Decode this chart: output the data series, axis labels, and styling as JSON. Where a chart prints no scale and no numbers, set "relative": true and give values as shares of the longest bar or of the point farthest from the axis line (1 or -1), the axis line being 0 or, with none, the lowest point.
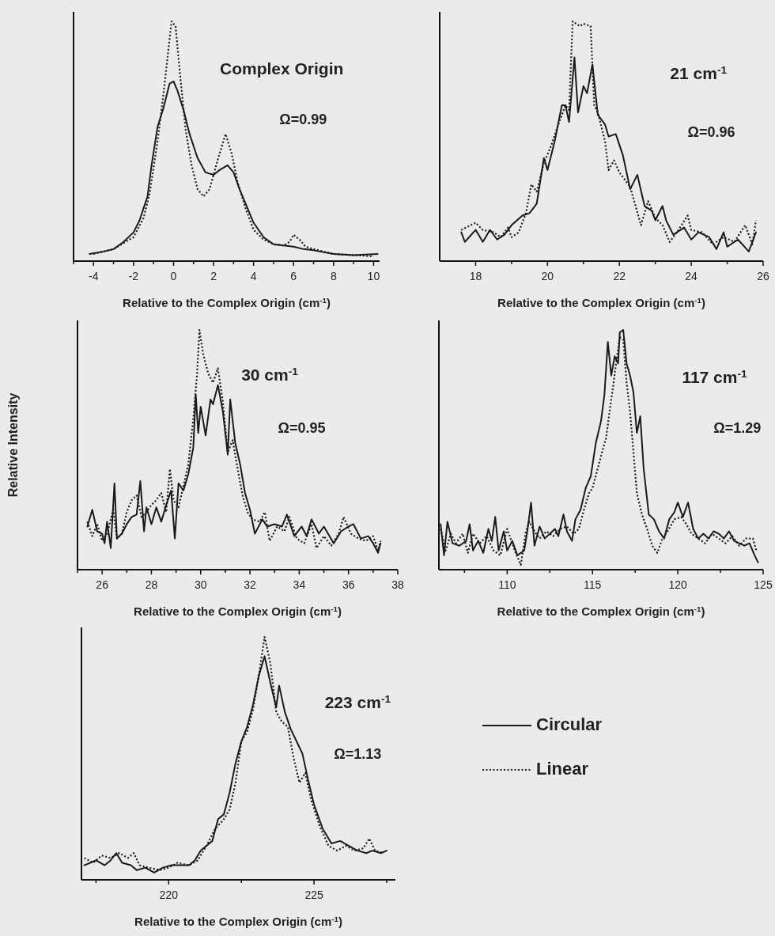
{
  "chart_data": [
    {
      "type": "line",
      "title": "Complex Origin",
      "annotations": [
        "Ω=0.99"
      ],
      "xlabel": "Relative to the Complex Origin (cm$^{-1}$)",
      "relative": true,
      "xlim": [
        -5,
        10.3
      ],
      "xticks": [
        {
          "value": -5,
          "label": null
        },
        -4,
        {
          "value": -3,
          "label": null
        },
        -2,
        {
          "value": -1,
          "label": null
        },
        0,
        {
          "value": 1,
          "label": null
        },
        2,
        {
          "value": 3,
          "label": null
        },
        4,
        {
          "value": 5,
          "label": null
        },
        6,
        {
          "value": 7,
          "label": null
        },
        8,
        {
          "value": 9,
          "label": null
        },
        10
      ],
      "series": [
        {
          "color": "#1a1a1a",
          "line_style": "solid",
          "x": [
            -4.2,
            -3.5,
            -3,
            -2.5,
            -2,
            -1.7,
            -1.5,
            -1.3,
            -1.1,
            -0.8,
            -0.5,
            -0.2,
            0,
            0.2,
            0.5,
            0.8,
            1.2,
            1.6,
            2,
            2.3,
            2.7,
            3,
            3.3,
            3.7,
            4,
            4.5,
            5,
            5.5,
            6,
            6.5,
            7,
            8,
            9,
            10.2
          ],
          "values": [
            0.03,
            0.04,
            0.05,
            0.08,
            0.12,
            0.17,
            0.22,
            0.27,
            0.4,
            0.56,
            0.64,
            0.74,
            0.75,
            0.71,
            0.63,
            0.53,
            0.43,
            0.37,
            0.36,
            0.38,
            0.4,
            0.37,
            0.3,
            0.22,
            0.16,
            0.1,
            0.07,
            0.065,
            0.06,
            0.05,
            0.045,
            0.03,
            0.025,
            0.03
          ]
        },
        {
          "color": "#1a1a1a",
          "line_style": "dotted",
          "x": [
            -4,
            -3,
            -2,
            -1.5,
            -1.2,
            -0.8,
            -0.5,
            -0.3,
            -0.1,
            0.1,
            0.3,
            0.6,
            0.9,
            1.2,
            1.5,
            1.8,
            2.2,
            2.6,
            2.9,
            3.2,
            3.6,
            4,
            4.5,
            5,
            5.5,
            5.8,
            6,
            6.3,
            6.6,
            7,
            8,
            9,
            10
          ],
          "values": [
            0.03,
            0.05,
            0.1,
            0.18,
            0.28,
            0.5,
            0.7,
            0.85,
            1,
            0.98,
            0.8,
            0.55,
            0.4,
            0.3,
            0.27,
            0.3,
            0.42,
            0.53,
            0.45,
            0.33,
            0.22,
            0.13,
            0.09,
            0.07,
            0.065,
            0.08,
            0.11,
            0.09,
            0.06,
            0.05,
            0.03,
            0.025,
            0.02
          ]
        }
      ]
    },
    {
      "type": "line",
      "title": "21 cm$^{-1}$",
      "annotations": [
        "Ω=0.96"
      ],
      "xlabel": "Relative to the Complex Origin (cm$^{-1}$)",
      "relative": true,
      "xlim": [
        17,
        26
      ],
      "xticks": [
        18,
        {
          "value": 19,
          "label": null
        },
        20,
        {
          "value": 21,
          "label": null
        },
        22,
        {
          "value": 23,
          "label": null
        },
        24,
        {
          "value": 25,
          "label": null
        },
        26
      ],
      "series": [
        {
          "color": "#1a1a1a",
          "line_style": "solid",
          "x": [
            17.6,
            17.7,
            18,
            18.2,
            18.4,
            18.6,
            18.8,
            19,
            19.3,
            19.5,
            19.7,
            19.9,
            20,
            20.2,
            20.4,
            20.5,
            20.6,
            20.75,
            20.85,
            21,
            21.1,
            21.25,
            21.4,
            21.6,
            21.7,
            21.9,
            22.1,
            22.3,
            22.5,
            22.7,
            22.9,
            23,
            23.2,
            23.3,
            23.5,
            23.8,
            24,
            24.2,
            24.5,
            24.7,
            24.9,
            25,
            25.3,
            25.6,
            25.8
          ],
          "values": [
            0.12,
            0.08,
            0.13,
            0.08,
            0.13,
            0.09,
            0.11,
            0.15,
            0.19,
            0.2,
            0.24,
            0.43,
            0.38,
            0.5,
            0.65,
            0.65,
            0.58,
            0.85,
            0.62,
            0.73,
            0.7,
            0.82,
            0.61,
            0.57,
            0.52,
            0.53,
            0.44,
            0.3,
            0.36,
            0.23,
            0.21,
            0.17,
            0.23,
            0.17,
            0.11,
            0.14,
            0.09,
            0.12,
            0.1,
            0.05,
            0.12,
            0.06,
            0.09,
            0.04,
            0.12
          ]
        },
        {
          "color": "#1a1a1a",
          "line_style": "dotted",
          "x": [
            17.6,
            18,
            18.2,
            18.5,
            18.7,
            18.9,
            19,
            19.2,
            19.4,
            19.55,
            19.7,
            19.9,
            20.1,
            20.3,
            20.5,
            20.6,
            20.7,
            20.9,
            21,
            21.2,
            21.3,
            21.4,
            21.6,
            21.7,
            21.85,
            22,
            22.3,
            22.6,
            22.8,
            23,
            23.2,
            23.4,
            23.6,
            23.9,
            24,
            24.3,
            24.6,
            24.9,
            25.2,
            25.5,
            25.7,
            25.8
          ],
          "values": [
            0.13,
            0.16,
            0.13,
            0.12,
            0.1,
            0.14,
            0.1,
            0.12,
            0.2,
            0.32,
            0.29,
            0.41,
            0.48,
            0.57,
            0.65,
            0.63,
            1,
            0.98,
            0.99,
            0.98,
            0.65,
            0.62,
            0.5,
            0.38,
            0.42,
            0.37,
            0.31,
            0.15,
            0.25,
            0.18,
            0.15,
            0.08,
            0.12,
            0.19,
            0.13,
            0.12,
            0.07,
            0.1,
            0.08,
            0.15,
            0.07,
            0.17
          ]
        }
      ]
    },
    {
      "type": "line",
      "title": "30 cm$^{-1}$",
      "annotations": [
        "Ω=0.95"
      ],
      "xlabel": "Relative to the Complex Origin (cm$^{-1}$)",
      "ylabel": "Relative Intensity",
      "relative": true,
      "xlim": [
        25,
        38
      ],
      "xticks": [
        {
          "value": 25,
          "label": null
        },
        26,
        {
          "value": 27,
          "label": null
        },
        28,
        {
          "value": 29,
          "label": null
        },
        30,
        {
          "value": 31,
          "label": null
        },
        32,
        {
          "value": 33,
          "label": null
        },
        34,
        {
          "value": 35,
          "label": null
        },
        36,
        {
          "value": 37,
          "label": null
        },
        38
      ],
      "series": [
        {
          "color": "#1a1a1a",
          "line_style": "solid",
          "x": [
            25.4,
            25.6,
            25.8,
            26,
            26.1,
            26.2,
            26.35,
            26.5,
            26.6,
            26.8,
            27,
            27.2,
            27.4,
            27.55,
            27.7,
            27.8,
            28,
            28.2,
            28.4,
            28.6,
            28.8,
            28.95,
            29.1,
            29.3,
            29.5,
            29.7,
            29.8,
            29.9,
            30,
            30.2,
            30.4,
            30.5,
            30.7,
            30.9,
            31.1,
            31.2,
            31.4,
            31.6,
            31.8,
            32,
            32.2,
            32.5,
            32.7,
            33,
            33.3,
            33.5,
            33.8,
            34.1,
            34.3,
            34.5,
            34.8,
            35,
            35.4,
            35.7,
            36,
            36.2,
            36.5,
            36.8,
            37,
            37.2,
            37.3
          ],
          "values": [
            0.18,
            0.25,
            0.16,
            0.15,
            0.11,
            0.2,
            0.09,
            0.36,
            0.13,
            0.15,
            0.19,
            0.22,
            0.23,
            0.37,
            0.16,
            0.26,
            0.19,
            0.26,
            0.2,
            0.27,
            0.33,
            0.13,
            0.36,
            0.33,
            0.4,
            0.51,
            0.73,
            0.57,
            0.68,
            0.56,
            0.71,
            0.69,
            0.77,
            0.66,
            0.48,
            0.71,
            0.53,
            0.44,
            0.32,
            0.25,
            0.15,
            0.21,
            0.18,
            0.19,
            0.18,
            0.23,
            0.14,
            0.18,
            0.14,
            0.21,
            0.15,
            0.18,
            0.11,
            0.16,
            0.18,
            0.19,
            0.13,
            0.14,
            0.11,
            0.07,
            0.11
          ]
        },
        {
          "color": "#1a1a1a",
          "line_style": "dotted",
          "x": [
            25.4,
            25.6,
            25.8,
            26,
            26.2,
            26.45,
            26.6,
            26.8,
            27,
            27.2,
            27.4,
            27.6,
            27.8,
            28,
            28.2,
            28.4,
            28.6,
            28.75,
            28.9,
            29.1,
            29.3,
            29.5,
            29.7,
            29.85,
            29.95,
            30.1,
            30.3,
            30.5,
            30.7,
            30.9,
            31.1,
            31.3,
            31.5,
            31.7,
            31.9,
            32.1,
            32.4,
            32.6,
            32.8,
            33.1,
            33.4,
            33.6,
            33.9,
            34.2,
            34.5,
            34.7,
            35,
            35.3,
            35.6,
            35.8,
            36.1,
            36.4,
            36.7,
            37,
            37.2,
            37.3
          ],
          "values": [
            0.2,
            0.14,
            0.19,
            0.12,
            0.15,
            0.25,
            0.13,
            0.15,
            0.24,
            0.29,
            0.31,
            0.22,
            0.24,
            0.27,
            0.29,
            0.32,
            0.24,
            0.42,
            0.29,
            0.26,
            0.35,
            0.44,
            0.63,
            0.81,
            1,
            0.9,
            0.82,
            0.78,
            0.84,
            0.7,
            0.49,
            0.54,
            0.42,
            0.31,
            0.24,
            0.21,
            0.2,
            0.24,
            0.12,
            0.18,
            0.16,
            0.22,
            0.13,
            0.11,
            0.19,
            0.09,
            0.14,
            0.1,
            0.15,
            0.22,
            0.15,
            0.13,
            0.12,
            0.14,
            0.08,
            0.12
          ]
        }
      ]
    },
    {
      "type": "line",
      "title": "117 cm$^{-1}$",
      "annotations": [
        "Ω=1.29"
      ],
      "xlabel": "Relative to the Complex Origin (cm$^{-1}$)",
      "relative": true,
      "xlim": [
        106,
        125
      ],
      "xticks": [
        {
          "value": 107.5,
          "label": null
        },
        110,
        {
          "value": 112.5,
          "label": null
        },
        115,
        {
          "value": 117.5,
          "label": null
        },
        120,
        {
          "value": 122.5,
          "label": null
        },
        125
      ],
      "series": [
        {
          "color": "#1a1a1a",
          "line_style": "solid",
          "x": [
            106.1,
            106.3,
            106.5,
            106.8,
            107.2,
            107.6,
            107.8,
            108,
            108.3,
            108.6,
            108.9,
            109.1,
            109.3,
            109.5,
            109.8,
            110,
            110.3,
            110.6,
            111,
            111.2,
            111.4,
            111.6,
            111.9,
            112.2,
            112.5,
            112.8,
            113,
            113.3,
            113.5,
            113.8,
            114,
            114.3,
            114.6,
            114.9,
            115.2,
            115.5,
            115.7,
            115.9,
            116.1,
            116.3,
            116.5,
            116.6,
            116.8,
            117,
            117.2,
            117.4,
            117.6,
            117.8,
            118,
            118.3,
            118.6,
            118.9,
            119.2,
            119.5,
            119.8,
            120,
            120.3,
            120.6,
            120.9,
            121.2,
            121.5,
            121.8,
            122.1,
            122.4,
            122.7,
            123,
            123.3,
            123.6,
            123.9,
            124.2,
            124.5,
            124.7
          ],
          "values": [
            0.19,
            0.06,
            0.2,
            0.11,
            0.1,
            0.12,
            0.19,
            0.08,
            0.12,
            0.07,
            0.17,
            0.12,
            0.22,
            0.08,
            0.16,
            0.08,
            0.12,
            0.06,
            0.08,
            0.17,
            0.28,
            0.1,
            0.18,
            0.13,
            0.15,
            0.17,
            0.14,
            0.23,
            0.16,
            0.12,
            0.21,
            0.25,
            0.34,
            0.39,
            0.53,
            0.62,
            0.73,
            0.95,
            0.81,
            0.89,
            0.86,
            0.99,
            1,
            0.86,
            0.81,
            0.74,
            0.57,
            0.64,
            0.42,
            0.23,
            0.21,
            0.16,
            0.13,
            0.21,
            0.24,
            0.28,
            0.22,
            0.28,
            0.17,
            0.13,
            0.15,
            0.13,
            0.16,
            0.15,
            0.13,
            0.16,
            0.12,
            0.11,
            0.1,
            0.11,
            0.06,
            0.03
          ]
        },
        {
          "color": "#1a1a1a",
          "line_style": "dotted",
          "x": [
            106.1,
            106.4,
            106.7,
            107,
            107.4,
            107.7,
            108,
            108.4,
            108.8,
            109.2,
            109.6,
            110,
            110.2,
            110.5,
            110.8,
            111.1,
            111.3,
            111.6,
            111.9,
            112.3,
            112.7,
            113.1,
            113.5,
            113.9,
            114.2,
            114.5,
            114.8,
            115,
            115.3,
            115.6,
            115.8,
            116,
            116.2,
            116.4,
            116.6,
            116.8,
            117,
            117.2,
            117.4,
            117.6,
            117.9,
            118.2,
            118.5,
            118.8,
            119.1,
            119.4,
            119.8,
            120.2,
            120.5,
            120.8,
            121.2,
            121.6,
            122,
            122.4,
            122.8,
            123.2,
            123.6,
            124,
            124.4,
            124.6
          ],
          "values": [
            0.17,
            0.08,
            0.15,
            0.11,
            0.15,
            0.07,
            0.15,
            0.11,
            0.14,
            0.08,
            0.06,
            0.17,
            0.13,
            0.07,
            0.02,
            0.16,
            0.2,
            0.16,
            0.13,
            0.16,
            0.14,
            0.17,
            0.18,
            0.15,
            0.17,
            0.25,
            0.32,
            0.34,
            0.42,
            0.5,
            0.55,
            0.66,
            0.76,
            0.87,
            0.97,
            0.96,
            0.78,
            0.66,
            0.49,
            0.32,
            0.23,
            0.17,
            0.1,
            0.07,
            0.13,
            0.16,
            0.21,
            0.22,
            0.19,
            0.15,
            0.13,
            0.11,
            0.15,
            0.13,
            0.11,
            0.14,
            0.1,
            0.13,
            0.13,
            0.08
          ]
        }
      ]
    },
    {
      "type": "line",
      "title": "223 cm$^{-1}$",
      "annotations": [
        "Ω=1.13"
      ],
      "xlabel": "Relative to the Complex Origin (cm$^{-1}$)",
      "relative": true,
      "legend": "right",
      "xlim": [
        217,
        227.8
      ],
      "xticks": [
        {
          "value": 217.5,
          "label": null
        },
        220,
        {
          "value": 222.5,
          "label": null
        },
        225,
        {
          "value": 227.5,
          "label": null
        }
      ],
      "series": [
        {
          "name": "Circular",
          "color": "#1a1a1a",
          "line_style": "solid",
          "x": [
            217.1,
            217.3,
            217.5,
            217.8,
            218,
            218.2,
            218.4,
            218.7,
            218.9,
            219.2,
            219.5,
            219.8,
            220.1,
            220.4,
            220.7,
            220.9,
            221.1,
            221.3,
            221.5,
            221.7,
            221.9,
            222.1,
            222.3,
            222.5,
            222.7,
            222.9,
            223.1,
            223.3,
            223.5,
            223.7,
            223.8,
            224,
            224.2,
            224.4,
            224.6,
            224.8,
            225,
            225.3,
            225.6,
            225.9,
            226.2,
            226.5,
            226.8,
            227,
            227.3,
            227.5
          ],
          "values": [
            0.06,
            0.07,
            0.08,
            0.06,
            0.08,
            0.11,
            0.07,
            0.06,
            0.04,
            0.05,
            0.03,
            0.05,
            0.06,
            0.06,
            0.06,
            0.08,
            0.12,
            0.14,
            0.16,
            0.25,
            0.27,
            0.36,
            0.48,
            0.57,
            0.63,
            0.72,
            0.84,
            0.92,
            0.81,
            0.71,
            0.8,
            0.69,
            0.62,
            0.57,
            0.52,
            0.41,
            0.31,
            0.21,
            0.15,
            0.16,
            0.14,
            0.12,
            0.11,
            0.12,
            0.11,
            0.12
          ]
        },
        {
          "name": "Linear",
          "color": "#1a1a1a",
          "line_style": "dotted",
          "x": [
            217.1,
            217.4,
            217.7,
            218,
            218.3,
            218.6,
            218.8,
            219,
            219.3,
            219.7,
            220,
            220.3,
            220.7,
            221,
            221.3,
            221.6,
            221.9,
            222.1,
            222.3,
            222.5,
            222.7,
            222.9,
            223.1,
            223.3,
            223.5,
            223.7,
            223.9,
            224.1,
            224.3,
            224.5,
            224.7,
            224.9,
            225.2,
            225.5,
            225.8,
            226.1,
            226.4,
            226.7,
            226.9,
            227.1,
            227.4
          ],
          "values": [
            0.09,
            0.07,
            0.1,
            0.09,
            0.11,
            0.09,
            0.11,
            0.06,
            0.05,
            0.04,
            0.05,
            0.07,
            0.06,
            0.08,
            0.14,
            0.21,
            0.25,
            0.29,
            0.4,
            0.57,
            0.61,
            0.7,
            0.84,
            1,
            0.89,
            0.69,
            0.65,
            0.63,
            0.5,
            0.4,
            0.44,
            0.33,
            0.22,
            0.14,
            0.12,
            0.14,
            0.12,
            0.13,
            0.17,
            0.12,
            0.11
          ]
        }
      ]
    }
  ]
}
